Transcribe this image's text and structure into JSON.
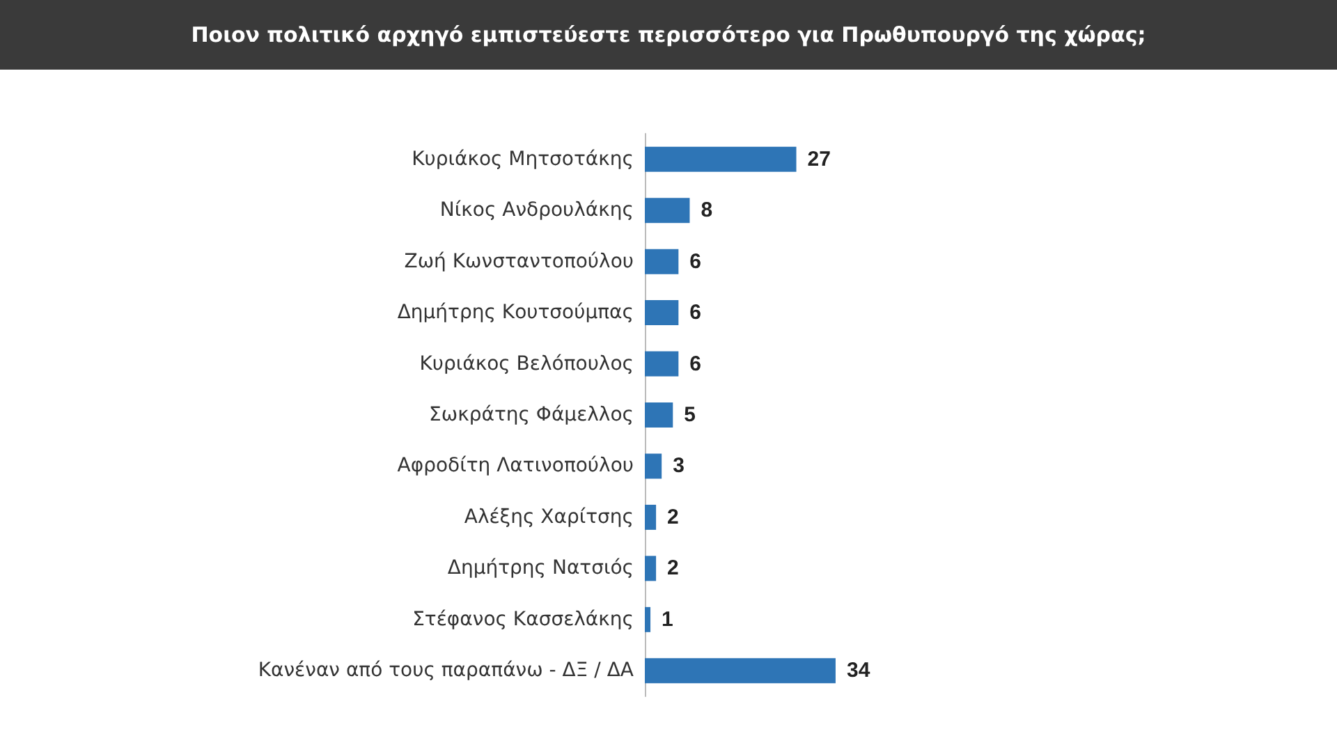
{
  "chart_data": {
    "type": "bar",
    "orientation": "horizontal",
    "title": "Ποιον πολιτικό αρχηγό εμπιστεύεστε περισσότερο για Πρωθυπουργό της χώρας;",
    "categories": [
      "Κυριάκος Μητσοτάκης",
      "Νίκος Ανδρουλάκης",
      "Ζωή Κωνσταντοπούλου",
      "Δημήτρης Κουτσούμπας",
      "Κυριάκος Βελόπουλος",
      "Σωκράτης Φάμελλος",
      "Αφροδίτη Λατινοπούλου",
      "Αλέξης Χαρίτσης",
      "Δημήτρης Νατσιός",
      "Στέφανος Κασσελάκης",
      "Κανέναν από τους παραπάνω - ΔΞ / ΔΑ"
    ],
    "values": [
      27,
      8,
      6,
      6,
      6,
      5,
      3,
      2,
      2,
      1,
      34
    ],
    "color": "#2e75b6",
    "data_labels": true
  }
}
